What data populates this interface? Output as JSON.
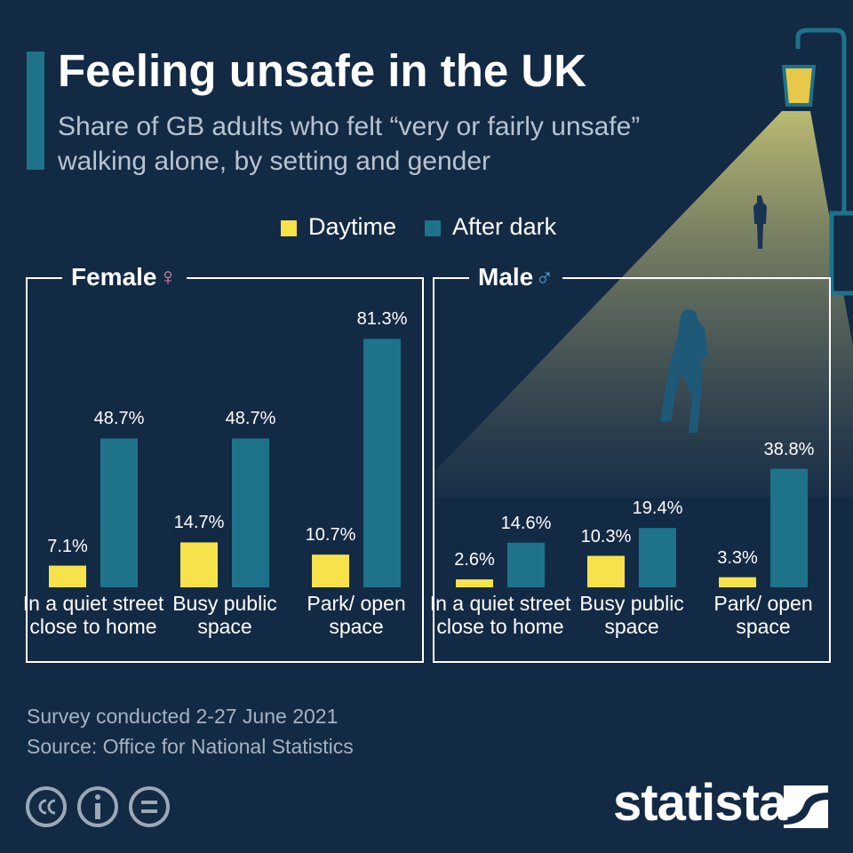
{
  "header": {
    "title": "Feeling unsafe in the UK",
    "subtitle": "Share of GB adults who felt “very or fairly unsafe” walking alone, by setting and gender"
  },
  "chart_data": [
    {
      "type": "bar",
      "title": "Female",
      "symbol": "♀",
      "categories": [
        "In a quiet street close to home",
        "Busy public space",
        "Park/ open space"
      ],
      "series": [
        {
          "name": "Daytime",
          "color": "#f7e24b",
          "values": [
            7.1,
            14.7,
            10.7
          ],
          "value_labels": [
            "7.1%",
            "14.7%",
            "10.7%"
          ]
        },
        {
          "name": "After dark",
          "color": "#1e7389",
          "values": [
            48.7,
            48.7,
            81.3
          ],
          "value_labels": [
            "48.7%",
            "48.7%",
            "81.3%"
          ]
        }
      ]
    },
    {
      "type": "bar",
      "title": "Male",
      "symbol": "♂",
      "categories": [
        "In a quiet street close to home",
        "Busy public space",
        "Park/ open space"
      ],
      "series": [
        {
          "color": "#f7e24b",
          "values": [
            2.6,
            10.3,
            3.3
          ],
          "value_labels": [
            "2.6%",
            "10.3%",
            "3.3%"
          ]
        },
        {
          "color": "#1e7389",
          "values": [
            14.6,
            19.4,
            38.8
          ],
          "value_labels": [
            "14.6%",
            "19.4%",
            "38.8%"
          ]
        }
      ]
    }
  ],
  "footer": {
    "note": "Survey conducted 2-27 June 2021",
    "source": "Source: Office for National Statistics",
    "brand": "statista"
  }
}
